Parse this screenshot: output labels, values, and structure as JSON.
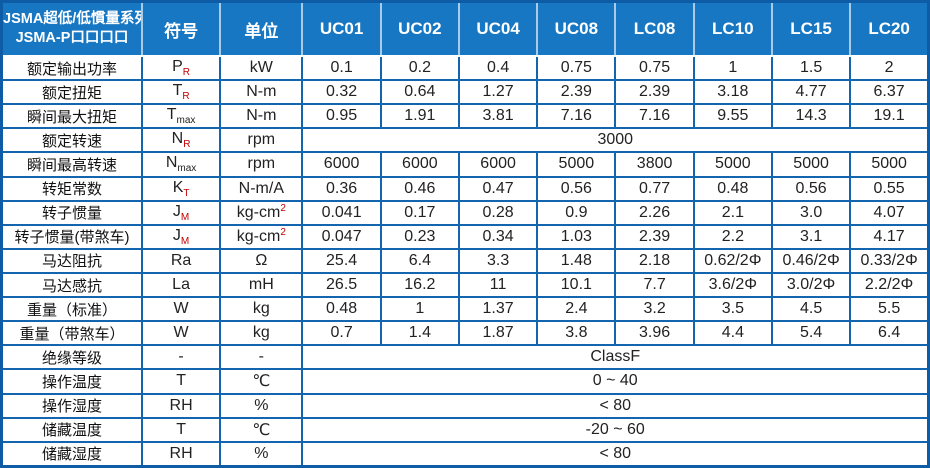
{
  "table": {
    "title_line1": "JSMA超低/低慣量系列",
    "title_line2": "JSMA-P口口口口",
    "col_symbol": "符号",
    "col_unit": "单位",
    "models": [
      "UC01",
      "UC02",
      "UC04",
      "UC08",
      "LC08",
      "LC10",
      "LC15",
      "LC20"
    ],
    "rows": [
      {
        "label": "额定输出功率",
        "sym": "P",
        "sub": "R",
        "sub_red": true,
        "unit": "kW",
        "values": [
          "0.1",
          "0.2",
          "0.4",
          "0.75",
          "0.75",
          "1",
          "1.5",
          "2"
        ]
      },
      {
        "label": "额定扭矩",
        "sym": "T",
        "sub": "R",
        "sub_red": true,
        "unit": "N-m",
        "values": [
          "0.32",
          "0.64",
          "1.27",
          "2.39",
          "2.39",
          "3.18",
          "4.77",
          "6.37"
        ]
      },
      {
        "label": "瞬间最大扭矩",
        "sym": "T",
        "sub": "max",
        "sub_red": false,
        "unit": "N-m",
        "values": [
          "0.95",
          "1.91",
          "3.81",
          "7.16",
          "7.16",
          "9.55",
          "14.3",
          "19.1"
        ]
      },
      {
        "label": "额定转速",
        "sym": "N",
        "sub": "R",
        "sub_red": true,
        "unit": "rpm",
        "span": "3000"
      },
      {
        "label": "瞬间最高转速",
        "sym": "N",
        "sub": "max",
        "sub_red": false,
        "unit": "rpm",
        "values": [
          "6000",
          "6000",
          "6000",
          "5000",
          "3800",
          "5000",
          "5000",
          "5000"
        ]
      },
      {
        "label": "转矩常数",
        "sym": "K",
        "sub": "T",
        "sub_red": true,
        "unit": "N-m/A",
        "values": [
          "0.36",
          "0.46",
          "0.47",
          "0.56",
          "0.77",
          "0.48",
          "0.56",
          "0.55"
        ]
      },
      {
        "label": "转子惯量",
        "sym": "J",
        "sub": "M",
        "sub_red": true,
        "unit": "kg-cm",
        "unit_sup": "2",
        "values": [
          "0.041",
          "0.17",
          "0.28",
          "0.9",
          "2.26",
          "2.1",
          "3.0",
          "4.07"
        ]
      },
      {
        "label": "转子惯量(带煞车)",
        "sym": "J",
        "sub": "M",
        "sub_red": true,
        "unit": "kg-cm",
        "unit_sup": "2",
        "values": [
          "0.047",
          "0.23",
          "0.34",
          "1.03",
          "2.39",
          "2.2",
          "3.1",
          "4.17"
        ]
      },
      {
        "label": "马达阻抗",
        "sym": "Ra",
        "sub": "",
        "sub_red": false,
        "unit": "Ω",
        "values": [
          "25.4",
          "6.4",
          "3.3",
          "1.48",
          "2.18",
          "0.62/2Φ",
          "0.46/2Φ",
          "0.33/2Φ"
        ]
      },
      {
        "label": "马达感抗",
        "sym": "La",
        "sub": "",
        "sub_red": false,
        "unit": "mH",
        "values": [
          "26.5",
          "16.2",
          "11",
          "10.1",
          "7.7",
          "3.6/2Φ",
          "3.0/2Φ",
          "2.2/2Φ"
        ]
      },
      {
        "label": "重量（标准）",
        "sym": "W",
        "sub": "",
        "sub_red": false,
        "unit": "kg",
        "values": [
          "0.48",
          "1",
          "1.37",
          "2.4",
          "3.2",
          "3.5",
          "4.5",
          "5.5"
        ]
      },
      {
        "label": "重量（带煞车）",
        "sym": "W",
        "sub": "",
        "sub_red": false,
        "unit": "kg",
        "values": [
          "0.7",
          "1.4",
          "1.87",
          "3.8",
          "3.96",
          "4.4",
          "5.4",
          "6.4"
        ]
      },
      {
        "label": "绝缘等级",
        "sym": "-",
        "sub": "",
        "sub_red": false,
        "unit": "-",
        "span": "ClassF"
      },
      {
        "label": "操作温度",
        "sym": "T",
        "sub": "",
        "sub_red": false,
        "unit": "℃",
        "span": "0 ~ 40"
      },
      {
        "label": "操作湿度",
        "sym": "RH",
        "sub": "",
        "sub_red": false,
        "unit": "%",
        "span": "< 80"
      },
      {
        "label": "储藏温度",
        "sym": "T",
        "sub": "",
        "sub_red": false,
        "unit": "℃",
        "span": "-20 ~ 60"
      },
      {
        "label": "储藏湿度",
        "sym": "RH",
        "sub": "",
        "sub_red": false,
        "unit": "%",
        "span": "< 80"
      }
    ],
    "colors": {
      "header_bg": "#1877C2",
      "border": "#1265AE",
      "outer_border": "#0E5CA6",
      "header_separator": "#A9CBE8",
      "subscript_red": "#C00000",
      "text": "#222222"
    }
  }
}
